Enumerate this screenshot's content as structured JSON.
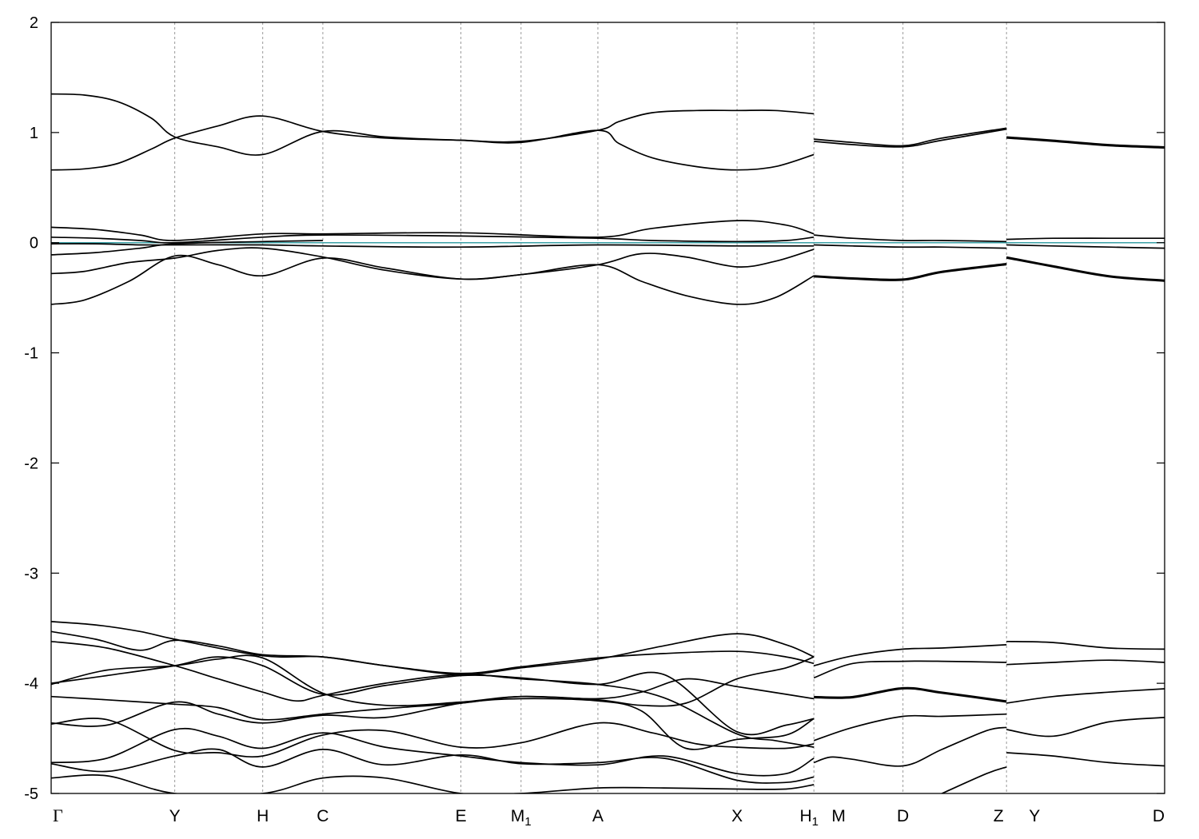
{
  "chart_data": {
    "type": "line",
    "title": "",
    "xlabel": "",
    "ylabel": "",
    "ylim": [
      -5,
      2
    ],
    "xlim": [
      0,
      100
    ],
    "grid": "vertical dashed lines at high-symmetry points",
    "legend": "none",
    "y_ticks": [
      2,
      1,
      0,
      -1,
      -2,
      -3,
      -4,
      -5
    ],
    "y_tick_labels": [
      "2",
      "1",
      "0",
      "-1",
      "-2",
      "-3",
      "-4",
      "-5"
    ],
    "kpoints": [
      {
        "label": "Γ",
        "sub": "",
        "x": 0,
        "serif": true
      },
      {
        "label": "Y",
        "sub": "",
        "x": 11.1
      },
      {
        "label": "H",
        "sub": "",
        "x": 19.0
      },
      {
        "label": "C",
        "sub": "",
        "x": 24.4
      },
      {
        "label": "E",
        "sub": "",
        "x": 36.8
      },
      {
        "label": "M",
        "sub": "1",
        "x": 42.2
      },
      {
        "label": "A",
        "sub": "",
        "x": 49.1
      },
      {
        "label": "X",
        "sub": "",
        "x": 61.6
      },
      {
        "label": "H",
        "sub": "1",
        "x": 68.5
      },
      {
        "label": "M",
        "sub": "",
        "x": 70.0
      },
      {
        "label": "D",
        "sub": "",
        "x": 76.5
      },
      {
        "label": "Z",
        "sub": "",
        "x": 85.8
      },
      {
        "label": "Y",
        "sub": "",
        "x": 87.6
      },
      {
        "label": "D",
        "sub": "",
        "x": 100
      }
    ],
    "vlines_x": [
      11.1,
      19.0,
      24.4,
      36.8,
      42.2,
      49.1,
      61.6,
      68.5,
      76.5,
      85.8
    ],
    "fermi_level": 0,
    "segments_x": [
      [
        0,
        68.5
      ],
      [
        68.5,
        85.8
      ],
      [
        85.8,
        100
      ]
    ],
    "series": [
      {
        "seg": 0,
        "x": [
          0,
          3,
          6,
          9,
          11.1,
          15,
          19.0,
          24.4,
          30,
          36.8,
          42.2,
          49.1,
          51,
          54,
          58,
          61.6,
          65,
          68.5
        ],
        "y": [
          1.35,
          1.34,
          1.28,
          1.13,
          0.96,
          0.87,
          0.8,
          1.01,
          0.96,
          0.93,
          0.92,
          1.02,
          1.1,
          1.18,
          1.2,
          1.2,
          1.2,
          1.17
        ]
      },
      {
        "seg": 0,
        "x": [
          0,
          3,
          6,
          9,
          11.1,
          15,
          19.0,
          24.4,
          30,
          36.8,
          42.2,
          49.1,
          51,
          54,
          58,
          61.6,
          65,
          68.5
        ],
        "y": [
          0.66,
          0.67,
          0.72,
          0.85,
          0.95,
          1.06,
          1.15,
          1.01,
          0.95,
          0.93,
          0.91,
          1.02,
          0.9,
          0.77,
          0.69,
          0.66,
          0.69,
          0.8
        ]
      },
      {
        "seg": 1,
        "x": [
          68.5,
          72,
          76.5,
          80,
          85.8
        ],
        "y": [
          0.92,
          0.89,
          0.87,
          0.93,
          1.03
        ]
      },
      {
        "seg": 1,
        "x": [
          68.5,
          72,
          76.5,
          80,
          85.8
        ],
        "y": [
          0.94,
          0.91,
          0.88,
          0.95,
          1.04
        ]
      },
      {
        "seg": 2,
        "x": [
          85.8,
          90,
          95,
          100
        ],
        "y": [
          0.96,
          0.93,
          0.89,
          0.87
        ]
      },
      {
        "seg": 2,
        "x": [
          85.8,
          90,
          95,
          100
        ],
        "y": [
          0.95,
          0.92,
          0.88,
          0.86
        ]
      },
      {
        "seg": 0,
        "x": [
          0,
          4,
          8,
          11.1,
          19.0,
          24.4,
          36.8,
          49.1,
          54,
          61.6,
          66,
          68.5
        ],
        "y": [
          0.14,
          0.12,
          0.07,
          0.02,
          0.08,
          0.08,
          0.09,
          0.05,
          0.13,
          0.2,
          0.16,
          0.08
        ]
      },
      {
        "seg": 0,
        "x": [
          0,
          4,
          8,
          11.1,
          19.0,
          24.4,
          36.8,
          49.1,
          54,
          61.6,
          66,
          68.5
        ],
        "y": [
          0.05,
          0.04,
          0.02,
          0.0,
          0.05,
          0.07,
          0.06,
          0.04,
          0.02,
          0.01,
          0.02,
          0.05
        ]
      },
      {
        "seg": 0,
        "x": [
          0,
          4,
          8,
          11.1,
          19.0,
          24.4,
          36.8,
          49.1,
          61.6,
          68.5
        ],
        "y": [
          -0.01,
          -0.01,
          -0.02,
          -0.02,
          -0.02,
          -0.03,
          -0.04,
          -0.02,
          -0.03,
          -0.03
        ]
      },
      {
        "seg": 0,
        "x": [
          0,
          4,
          8,
          11.1,
          19.0,
          24.4
        ],
        "y": [
          -0.11,
          -0.09,
          -0.05,
          -0.01,
          0.01,
          0.02
        ]
      },
      {
        "seg": 0,
        "x": [
          0,
          3,
          7,
          11.1,
          15,
          19.0,
          24.4,
          30,
          36.8,
          42.2,
          49.1,
          53,
          57,
          61.6,
          65,
          68.5
        ],
        "y": [
          -0.28,
          -0.26,
          -0.18,
          -0.14,
          -0.07,
          -0.05,
          -0.13,
          -0.25,
          -0.33,
          -0.29,
          -0.2,
          -0.1,
          -0.13,
          -0.22,
          -0.17,
          -0.06
        ]
      },
      {
        "seg": 0,
        "x": [
          0,
          3,
          7,
          11.1,
          15,
          19.0,
          24.4,
          30,
          36.8,
          42.2,
          49.1,
          53,
          57,
          61.6,
          65,
          68.5
        ],
        "y": [
          -0.56,
          -0.52,
          -0.35,
          -0.12,
          -0.2,
          -0.3,
          -0.14,
          -0.23,
          -0.33,
          -0.29,
          -0.2,
          -0.35,
          -0.48,
          -0.56,
          -0.5,
          -0.3
        ]
      },
      {
        "seg": 1,
        "x": [
          68.5,
          72,
          76.5,
          80,
          85.8
        ],
        "y": [
          0.07,
          0.04,
          0.02,
          0.02,
          0.01
        ]
      },
      {
        "seg": 1,
        "x": [
          68.5,
          72,
          76.5,
          80,
          85.8
        ],
        "y": [
          -0.02,
          -0.03,
          -0.04,
          -0.04,
          -0.05
        ]
      },
      {
        "seg": 1,
        "x": [
          68.5,
          72,
          76.5,
          80,
          85.8
        ],
        "y": [
          -0.31,
          -0.33,
          -0.34,
          -0.27,
          -0.2
        ]
      },
      {
        "seg": 1,
        "x": [
          68.5,
          72,
          76.5,
          80,
          85.8
        ],
        "y": [
          -0.3,
          -0.32,
          -0.33,
          -0.26,
          -0.19
        ]
      },
      {
        "seg": 2,
        "x": [
          85.8,
          90,
          95,
          100
        ],
        "y": [
          0.03,
          0.04,
          0.04,
          0.04
        ]
      },
      {
        "seg": 2,
        "x": [
          85.8,
          90,
          95,
          100
        ],
        "y": [
          -0.02,
          -0.03,
          -0.04,
          -0.05
        ]
      },
      {
        "seg": 2,
        "x": [
          85.8,
          90,
          95,
          100
        ],
        "y": [
          -0.13,
          -0.21,
          -0.3,
          -0.34
        ]
      },
      {
        "seg": 2,
        "x": [
          85.8,
          90,
          95,
          100
        ],
        "y": [
          -0.14,
          -0.22,
          -0.31,
          -0.35
        ]
      },
      {
        "seg": 0,
        "x": [
          0,
          4,
          8,
          11.1,
          19.0,
          24.4,
          30,
          36.8,
          42.2,
          49.1,
          55,
          61.6,
          66,
          68.5
        ],
        "y": [
          -3.44,
          -3.47,
          -3.53,
          -3.6,
          -3.75,
          -3.76,
          -3.84,
          -3.92,
          -3.86,
          -3.78,
          -3.66,
          -3.55,
          -3.65,
          -3.76
        ]
      },
      {
        "seg": 0,
        "x": [
          0,
          4,
          8,
          11.1,
          15,
          19.0,
          24.4,
          30,
          36.8,
          42.2,
          49.1,
          55,
          61.6,
          66,
          68.5
        ],
        "y": [
          -3.53,
          -3.6,
          -3.7,
          -3.61,
          -3.66,
          -3.74,
          -3.76,
          -3.84,
          -3.91,
          -3.85,
          -3.77,
          -3.73,
          -3.71,
          -3.76,
          -3.82
        ]
      },
      {
        "seg": 0,
        "x": [
          0,
          5,
          11.1,
          15,
          19.0,
          22,
          24.4,
          30,
          36.8,
          42.2,
          49.1,
          55,
          61.6,
          65,
          68.5
        ],
        "y": [
          -3.62,
          -3.68,
          -3.84,
          -3.96,
          -4.08,
          -4.16,
          -4.11,
          -4.0,
          -3.92,
          -3.96,
          -4.01,
          -4.13,
          -4.46,
          -4.52,
          -4.58
        ]
      },
      {
        "seg": 0,
        "x": [
          0,
          5,
          11.1,
          15,
          19.0,
          24.4,
          30,
          36.8,
          42.2,
          49.1,
          55,
          61.6,
          66,
          68.5
        ],
        "y": [
          -4.0,
          -3.93,
          -3.84,
          -3.76,
          -3.84,
          -4.1,
          -4.02,
          -3.93,
          -3.95,
          -4.01,
          -3.92,
          -4.44,
          -4.38,
          -4.32
        ]
      },
      {
        "seg": 0,
        "x": [
          0,
          5,
          11.1,
          15,
          19.0,
          24.4,
          30,
          36.8,
          42.2,
          49.1,
          53,
          57,
          61.6,
          66,
          68.5
        ],
        "y": [
          -4.01,
          -3.88,
          -3.84,
          -3.78,
          -3.77,
          -4.09,
          -4.2,
          -4.17,
          -4.12,
          -4.15,
          -4.2,
          -4.18,
          -3.96,
          -3.86,
          -3.76
        ]
      },
      {
        "seg": 0,
        "x": [
          0,
          5,
          11.1,
          15,
          19.0,
          24.4,
          30,
          36.8,
          42.2,
          49.1,
          53,
          57,
          61.6,
          66,
          68.5
        ],
        "y": [
          -4.12,
          -4.15,
          -4.19,
          -4.22,
          -4.33,
          -4.28,
          -4.23,
          -4.18,
          -4.12,
          -4.14,
          -4.08,
          -3.96,
          -4.03,
          -4.1,
          -4.14
        ]
      },
      {
        "seg": 0,
        "x": [
          0,
          5,
          11.1,
          15,
          19.0,
          24.4,
          30,
          36.8,
          42.2,
          49.1,
          53,
          57,
          61.6,
          66,
          68.5
        ],
        "y": [
          -4.36,
          -4.38,
          -4.17,
          -4.28,
          -4.36,
          -4.29,
          -4.31,
          -4.18,
          -4.14,
          -4.16,
          -4.25,
          -4.59,
          -4.51,
          -4.47,
          -4.32
        ]
      },
      {
        "seg": 0,
        "x": [
          0,
          5,
          11.1,
          15,
          19.0,
          24.4,
          30,
          36.8,
          42.2,
          49.1,
          54,
          58,
          61.6,
          66,
          68.5
        ],
        "y": [
          -4.37,
          -4.33,
          -4.61,
          -4.63,
          -4.66,
          -4.47,
          -4.43,
          -4.58,
          -4.54,
          -4.36,
          -4.45,
          -4.55,
          -4.58,
          -4.59,
          -4.55
        ]
      },
      {
        "seg": 0,
        "x": [
          0,
          5,
          11.1,
          15,
          19.0,
          24.4,
          30,
          36.8,
          42.2,
          49.1,
          55,
          61.6,
          66,
          68.5
        ],
        "y": [
          -4.72,
          -4.68,
          -4.42,
          -4.48,
          -4.59,
          -4.45,
          -4.58,
          -4.66,
          -4.72,
          -4.74,
          -4.66,
          -4.82,
          -4.82,
          -4.68
        ]
      },
      {
        "seg": 0,
        "x": [
          0,
          5,
          11.1,
          15,
          19.0,
          24.4,
          30,
          36.8,
          42.2,
          49.1,
          55,
          61.6,
          66,
          68.5
        ],
        "y": [
          -4.73,
          -4.8,
          -4.66,
          -4.6,
          -4.76,
          -4.6,
          -4.74,
          -4.65,
          -4.73,
          -4.72,
          -4.68,
          -4.88,
          -4.9,
          -4.85
        ]
      },
      {
        "seg": 0,
        "x": [
          0,
          5,
          11.1,
          19.0,
          24.4,
          30,
          36.8,
          42.2,
          49.1,
          55,
          61.6,
          66,
          68.5
        ],
        "y": [
          -4.86,
          -4.84,
          -5.0,
          -5.0,
          -4.86,
          -4.86,
          -5.0,
          -5.0,
          -4.95,
          -4.95,
          -4.96,
          -4.96,
          -4.92
        ]
      },
      {
        "seg": 1,
        "x": [
          68.5,
          72,
          76.5,
          80,
          85.8
        ],
        "y": [
          -3.84,
          -3.75,
          -3.69,
          -3.68,
          -3.65
        ]
      },
      {
        "seg": 1,
        "x": [
          68.5,
          72,
          76.5,
          80,
          85.8
        ],
        "y": [
          -3.95,
          -3.82,
          -3.8,
          -3.8,
          -3.81
        ]
      },
      {
        "seg": 1,
        "x": [
          68.5,
          72,
          76.5,
          80,
          85.8
        ],
        "y": [
          -4.13,
          -4.13,
          -4.05,
          -4.09,
          -4.17
        ]
      },
      {
        "seg": 1,
        "x": [
          68.5,
          72,
          76.5,
          80,
          85.8
        ],
        "y": [
          -4.12,
          -4.12,
          -4.04,
          -4.08,
          -4.16
        ]
      },
      {
        "seg": 1,
        "x": [
          68.5,
          72,
          76.5,
          80,
          85.8
        ],
        "y": [
          -4.52,
          -4.4,
          -4.3,
          -4.3,
          -4.28
        ]
      },
      {
        "seg": 1,
        "x": [
          68.5,
          70,
          72,
          76.5,
          80,
          84,
          85.8
        ],
        "y": [
          -4.72,
          -4.67,
          -4.69,
          -4.75,
          -4.6,
          -4.43,
          -4.4
        ]
      },
      {
        "seg": 1,
        "x": [
          80,
          84,
          85.8
        ],
        "y": [
          -5.0,
          -4.82,
          -4.76
        ]
      },
      {
        "seg": 2,
        "x": [
          85.8,
          90,
          95,
          100
        ],
        "y": [
          -3.62,
          -3.63,
          -3.68,
          -3.69
        ]
      },
      {
        "seg": 2,
        "x": [
          85.8,
          90,
          95,
          100
        ],
        "y": [
          -3.83,
          -3.81,
          -3.79,
          -3.81
        ]
      },
      {
        "seg": 2,
        "x": [
          85.8,
          90,
          95,
          100
        ],
        "y": [
          -4.18,
          -4.12,
          -4.08,
          -4.05
        ]
      },
      {
        "seg": 2,
        "x": [
          85.8,
          90,
          95,
          100
        ],
        "y": [
          -4.42,
          -4.48,
          -4.35,
          -4.31
        ]
      },
      {
        "seg": 2,
        "x": [
          85.8,
          90,
          95,
          100
        ],
        "y": [
          -4.63,
          -4.66,
          -4.72,
          -4.75
        ]
      }
    ]
  }
}
